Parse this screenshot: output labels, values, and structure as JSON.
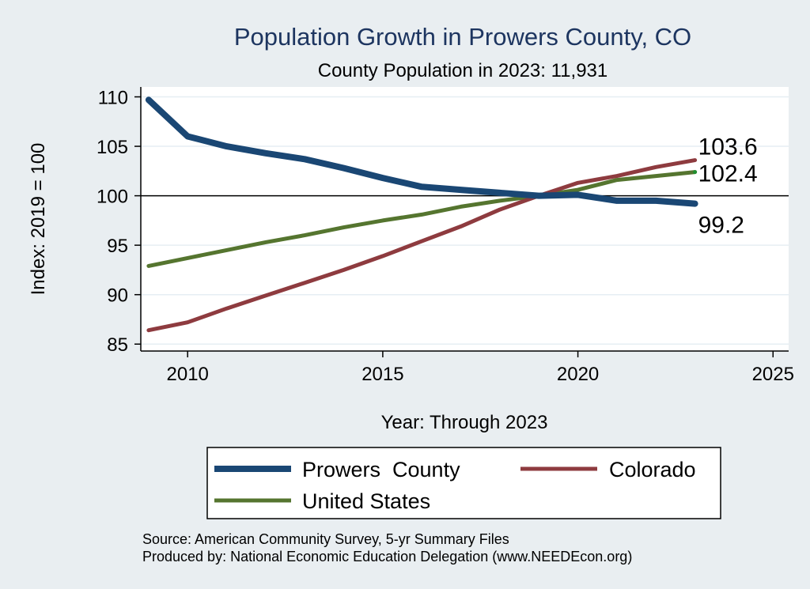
{
  "chart_data": {
    "type": "line",
    "title": "Population Growth in Prowers County, CO",
    "subtitle": "County Population in 2023: 11,931",
    "xlabel": "Year: Through 2023",
    "ylabel": "Index: 2019 = 100",
    "xlim": [
      2008.8,
      2025.4
    ],
    "ylim": [
      84.3,
      111.0
    ],
    "xticks": [
      2010,
      2015,
      2020,
      2025
    ],
    "yticks": [
      85,
      90,
      95,
      100,
      105,
      110
    ],
    "reference_line": 100,
    "x": [
      2009,
      2010,
      2011,
      2012,
      2013,
      2014,
      2015,
      2016,
      2017,
      2018,
      2019,
      2020,
      2021,
      2022,
      2023
    ],
    "series": [
      {
        "name": "Prowers  County",
        "color": "#1a4774",
        "values": [
          109.7,
          106.0,
          105.0,
          104.3,
          103.7,
          102.8,
          101.8,
          100.9,
          100.6,
          100.3,
          100.0,
          100.1,
          99.5,
          99.5,
          99.2
        ],
        "end_label": "99.2"
      },
      {
        "name": "Colorado",
        "color": "#8e3b3f",
        "values": [
          86.4,
          87.2,
          88.6,
          89.9,
          91.2,
          92.5,
          93.9,
          95.4,
          96.9,
          98.6,
          100.0,
          101.3,
          102.0,
          102.9,
          103.6
        ],
        "end_label": "103.6"
      },
      {
        "name": "United States",
        "color": "#55752f",
        "values": [
          92.9,
          93.7,
          94.5,
          95.3,
          96.0,
          96.8,
          97.5,
          98.1,
          98.9,
          99.5,
          100.0,
          100.6,
          101.6,
          102.0,
          102.4
        ],
        "end_label": "102.4"
      }
    ],
    "legend": {
      "position": "bottom",
      "columns": 2
    },
    "notes": [
      "Source: American Community Survey, 5-yr Summary Files",
      "Produced by: National Economic Education Delegation (www.NEEDEcon.org)"
    ]
  }
}
